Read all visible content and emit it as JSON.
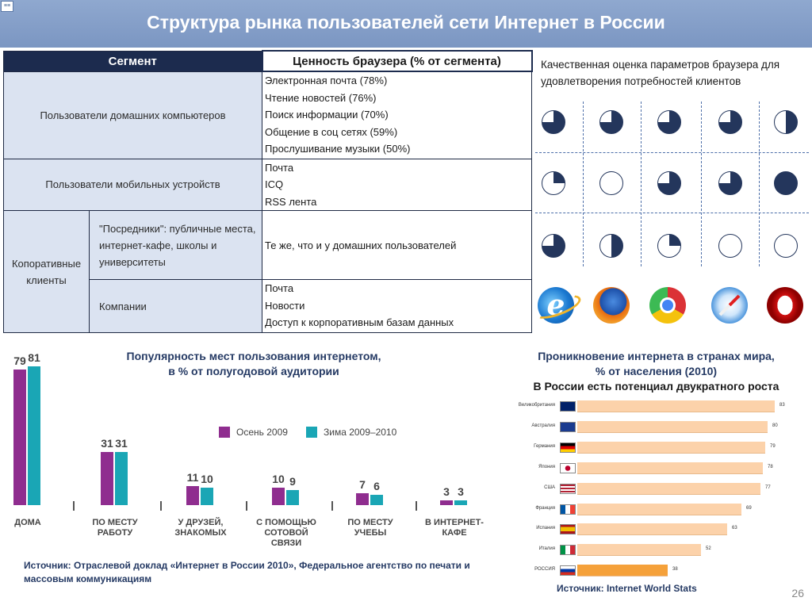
{
  "header": {
    "title": "Структура рынка пользователей сети Интернет в России",
    "logo_text": "≡≡"
  },
  "table": {
    "col1_header": "Сегмент",
    "col2_header": "Ценность браузера (% от сегмента)",
    "rows": [
      {
        "label": "Пользователи домашних компьютеров",
        "values": [
          "Электронная почта (78%)",
          "Чтение новостей (76%)",
          "Поиск информации (70%)",
          "Общение в соц сетях (59%)",
          "Прослушивание музыки (50%)"
        ]
      },
      {
        "label": "Пользователи  мобильных устройств",
        "values": [
          "Почта",
          "ICQ",
          "RSS лента"
        ]
      },
      {
        "group_label": "Копоративные клиенты",
        "sub_label": "\"Посредники\": публичные места, интернет-кафе, школы и университеты",
        "values": [
          "Те же, что и у домашних пользователей"
        ]
      },
      {
        "sub_label": "Компании",
        "values": [
          "Почта",
          "Новости",
          "Доступ к корпоративным базам данных"
        ]
      }
    ]
  },
  "assessment": {
    "title": "Качественная оценка параметров браузера для удовлетворения потребностей клиентов",
    "rows": [
      [
        75,
        75,
        75,
        75,
        50
      ],
      [
        25,
        0,
        75,
        75,
        100
      ],
      [
        75,
        50,
        25,
        0,
        0
      ]
    ],
    "browsers": [
      "internet-explorer",
      "firefox",
      "chrome",
      "safari",
      "opera"
    ],
    "opera_letter": "O",
    "ie_letter": "e",
    "colors": {
      "fill": "#24365c",
      "dash": "#4d6fa9"
    }
  },
  "popularity": {
    "title_line1": "Популярность мест пользования интернетом,",
    "title_line2": "в % от полугодовой аудитории",
    "legend": [
      "Осень 2009",
      "Зима 2009–2010"
    ],
    "colors": [
      "#8f2d8f",
      "#1aa6b5"
    ]
  },
  "chart_data": {
    "type": "bar",
    "title": "Популярность мест пользования интернетом, в % от полугодовой аудитории",
    "categories": [
      "ДОМА",
      "ПО МЕСТУ РАБОТУ",
      "У ДРУЗЕЙ, ЗНАКОМЫХ",
      "С ПОМОЩЬЮ СОТОВОЙ СВЯЗИ",
      "ПО МЕСТУ УЧЕБЫ",
      "В ИНТЕРНЕТ-КАФЕ"
    ],
    "series": [
      {
        "name": "Осень 2009",
        "values": [
          79,
          31,
          11,
          10,
          7,
          3
        ]
      },
      {
        "name": "Зима 2009–2010",
        "values": [
          81,
          31,
          10,
          9,
          6,
          3
        ]
      }
    ],
    "ylim": [
      0,
      81
    ]
  },
  "popularity_labels": [
    [
      "ДОМА"
    ],
    [
      "ПО МЕСТУ",
      "РАБОТУ"
    ],
    [
      "У ДРУЗЕЙ,",
      "ЗНАКОМЫХ"
    ],
    [
      "С ПОМОЩЬЮ",
      "СОТОВОЙ",
      "СВЯЗИ"
    ],
    [
      "ПО МЕСТУ",
      "УЧЕБЫ"
    ],
    [
      "В ИНТЕРНЕТ-",
      "КАФЕ"
    ]
  ],
  "penetration": {
    "title_line1": "Проникновение интернета в странах мира,",
    "title_line2": "% от населения (2010)",
    "subtitle": "В России есть потенциал двукратного роста",
    "countries": [
      "Великобритания",
      "Австралия",
      "Германия",
      "Япония",
      "США",
      "Франция",
      "Испания",
      "Италия",
      "РОССИЯ"
    ],
    "values": [
      83,
      80,
      79,
      78,
      77,
      69,
      63,
      52,
      38
    ],
    "highlight_index": 8,
    "colors": {
      "bar": "#fcd2aa",
      "highlight": "#f5a13a"
    }
  },
  "sources": {
    "left": "Источник: Отраслевой доклад «Интернет в России 2010», Федеральное агентство по печати и массовым коммуникациям",
    "right": "Источник: Internet World Stats"
  },
  "page_number": "26"
}
